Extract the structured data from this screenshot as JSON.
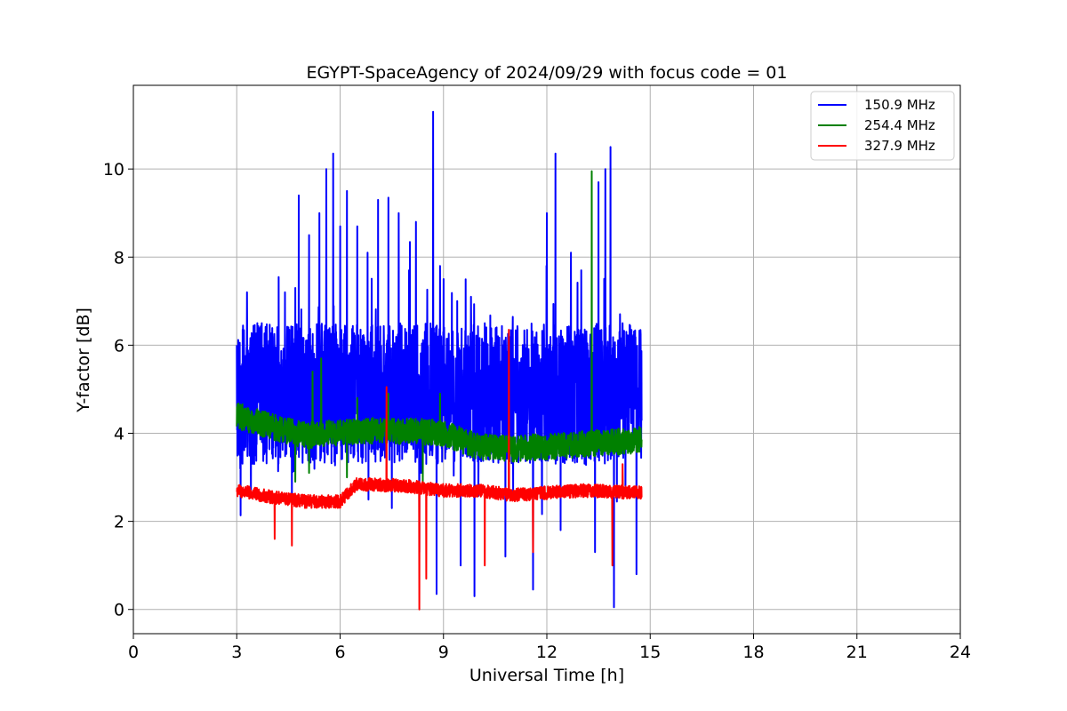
{
  "chart_data": {
    "type": "line",
    "title": "EGYPT-SpaceAgency of 2024/09/29 with focus code = 01",
    "xlabel": "Universal Time [h]",
    "ylabel": "Y-factor [dB]",
    "xlim": [
      0,
      24
    ],
    "ylim": [
      -0.55,
      11.9
    ],
    "xticks": [
      0,
      3,
      6,
      9,
      12,
      15,
      18,
      21,
      24
    ],
    "yticks": [
      0,
      2,
      4,
      6,
      8,
      10
    ],
    "grid": true,
    "legend_position": "top-right",
    "data_start_h": 3.0,
    "data_end_h": 14.75,
    "series": [
      {
        "name": "150.9 MHz",
        "color": "#0000ff",
        "baseline": 4.9,
        "noise_amplitude": 1.6,
        "peaks": [
          {
            "x": 3.0,
            "y": 6.0
          },
          {
            "x": 3.1,
            "y": 7.3
          },
          {
            "x": 3.3,
            "y": 7.2
          },
          {
            "x": 3.6,
            "y": 6.5
          },
          {
            "x": 4.4,
            "y": 7.2
          },
          {
            "x": 4.7,
            "y": 7.3
          },
          {
            "x": 4.8,
            "y": 9.4
          },
          {
            "x": 5.1,
            "y": 8.5
          },
          {
            "x": 5.4,
            "y": 9.0
          },
          {
            "x": 5.6,
            "y": 10.0
          },
          {
            "x": 5.8,
            "y": 10.35
          },
          {
            "x": 6.0,
            "y": 8.7
          },
          {
            "x": 6.2,
            "y": 9.5
          },
          {
            "x": 6.5,
            "y": 8.7
          },
          {
            "x": 6.8,
            "y": 8.1
          },
          {
            "x": 7.1,
            "y": 9.3
          },
          {
            "x": 7.4,
            "y": 9.35
          },
          {
            "x": 7.7,
            "y": 9.0
          },
          {
            "x": 8.0,
            "y": 7.7
          },
          {
            "x": 8.2,
            "y": 8.8
          },
          {
            "x": 8.7,
            "y": 11.3
          },
          {
            "x": 8.9,
            "y": 7.8
          },
          {
            "x": 9.4,
            "y": 7.0
          },
          {
            "x": 9.8,
            "y": 7.1
          },
          {
            "x": 10.2,
            "y": 6.5
          },
          {
            "x": 10.8,
            "y": 6.8
          },
          {
            "x": 11.0,
            "y": 6.3
          },
          {
            "x": 11.6,
            "y": 7.0
          },
          {
            "x": 12.0,
            "y": 9.0
          },
          {
            "x": 12.25,
            "y": 10.35
          },
          {
            "x": 12.4,
            "y": 10.1
          },
          {
            "x": 12.7,
            "y": 8.1
          },
          {
            "x": 13.0,
            "y": 7.7
          },
          {
            "x": 13.5,
            "y": 9.7
          },
          {
            "x": 13.7,
            "y": 10.0
          },
          {
            "x": 13.85,
            "y": 10.5
          },
          {
            "x": 14.2,
            "y": 6.5
          },
          {
            "x": 14.5,
            "y": 6.1
          }
        ],
        "dips": [
          {
            "x": 3.1,
            "y": 3.2
          },
          {
            "x": 4.6,
            "y": 2.5
          },
          {
            "x": 7.5,
            "y": 2.3
          },
          {
            "x": 8.3,
            "y": 1.3
          },
          {
            "x": 8.8,
            "y": 0.35
          },
          {
            "x": 9.5,
            "y": 1.0
          },
          {
            "x": 9.9,
            "y": 0.3
          },
          {
            "x": 10.8,
            "y": 1.2
          },
          {
            "x": 11.6,
            "y": 0.45
          },
          {
            "x": 12.4,
            "y": 1.8
          },
          {
            "x": 13.4,
            "y": 1.3
          },
          {
            "x": 13.95,
            "y": 0.05
          },
          {
            "x": 14.6,
            "y": 0.8
          }
        ]
      },
      {
        "name": "254.4 MHz",
        "color": "#008000",
        "trend": [
          {
            "x": 3.0,
            "y": 4.4
          },
          {
            "x": 4.0,
            "y": 4.15
          },
          {
            "x": 5.0,
            "y": 3.95
          },
          {
            "x": 6.5,
            "y": 4.05
          },
          {
            "x": 8.0,
            "y": 4.05
          },
          {
            "x": 9.0,
            "y": 4.0
          },
          {
            "x": 10.0,
            "y": 3.7
          },
          {
            "x": 11.0,
            "y": 3.65
          },
          {
            "x": 12.0,
            "y": 3.7
          },
          {
            "x": 13.0,
            "y": 3.75
          },
          {
            "x": 14.75,
            "y": 3.85
          }
        ],
        "noise_amplitude": 0.3,
        "peaks": [
          {
            "x": 5.2,
            "y": 5.4
          },
          {
            "x": 5.45,
            "y": 5.7
          },
          {
            "x": 6.5,
            "y": 4.8
          },
          {
            "x": 7.4,
            "y": 4.9
          },
          {
            "x": 8.9,
            "y": 4.9
          },
          {
            "x": 13.3,
            "y": 9.95
          }
        ],
        "dips": [
          {
            "x": 4.7,
            "y": 2.9
          },
          {
            "x": 5.1,
            "y": 3.1
          },
          {
            "x": 6.2,
            "y": 3.0
          },
          {
            "x": 8.4,
            "y": 2.9
          }
        ]
      },
      {
        "name": "327.9 MHz",
        "color": "#ff0000",
        "trend": [
          {
            "x": 3.0,
            "y": 2.7
          },
          {
            "x": 4.0,
            "y": 2.55
          },
          {
            "x": 5.0,
            "y": 2.45
          },
          {
            "x": 6.0,
            "y": 2.45
          },
          {
            "x": 6.5,
            "y": 2.85
          },
          {
            "x": 8.0,
            "y": 2.8
          },
          {
            "x": 9.0,
            "y": 2.7
          },
          {
            "x": 10.0,
            "y": 2.7
          },
          {
            "x": 11.0,
            "y": 2.6
          },
          {
            "x": 12.0,
            "y": 2.65
          },
          {
            "x": 13.0,
            "y": 2.7
          },
          {
            "x": 14.75,
            "y": 2.65
          }
        ],
        "noise_amplitude": 0.15,
        "peaks": [
          {
            "x": 7.35,
            "y": 5.05
          },
          {
            "x": 10.9,
            "y": 6.35
          },
          {
            "x": 14.2,
            "y": 3.3
          }
        ],
        "dips": [
          {
            "x": 4.1,
            "y": 1.6
          },
          {
            "x": 4.6,
            "y": 1.45
          },
          {
            "x": 8.3,
            "y": 0.0
          },
          {
            "x": 8.5,
            "y": 0.7
          },
          {
            "x": 10.2,
            "y": 1.0
          },
          {
            "x": 11.6,
            "y": 1.3
          },
          {
            "x": 13.9,
            "y": 1.0
          }
        ]
      }
    ]
  }
}
